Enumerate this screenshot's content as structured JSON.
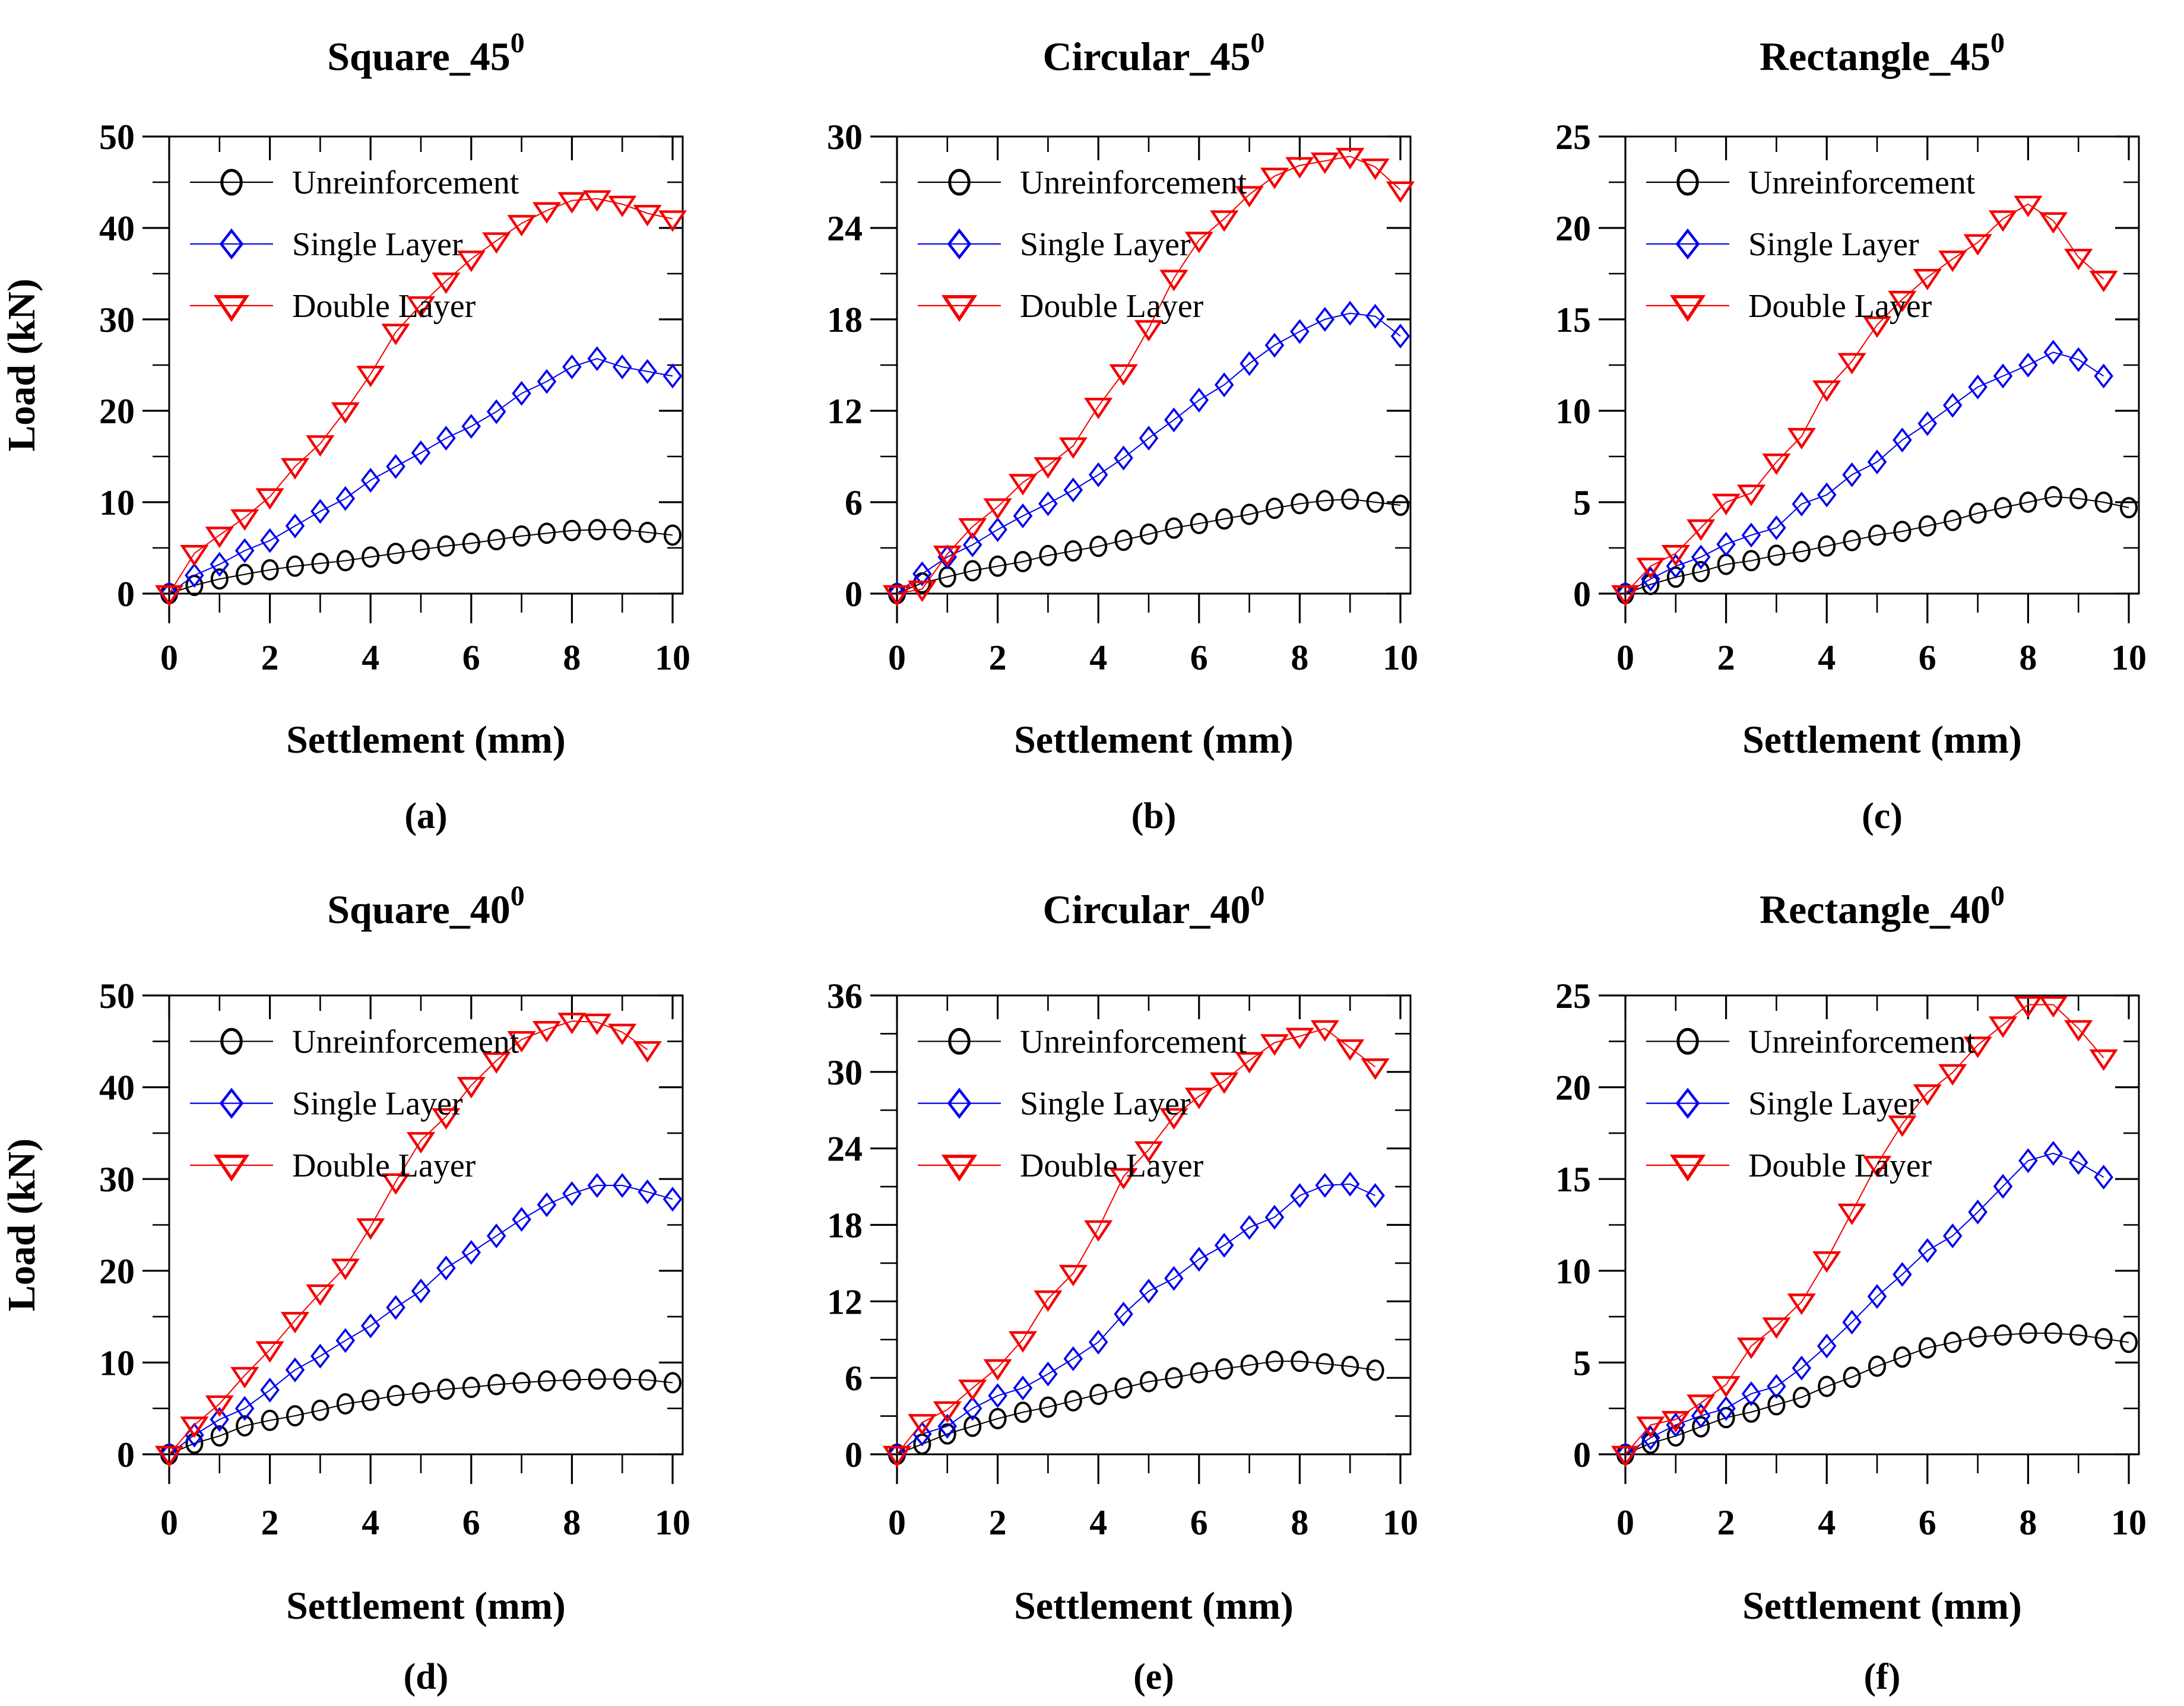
{
  "figure": {
    "xlabel": "Settlement (mm)",
    "ylabel": "Load (kN)",
    "legend": [
      {
        "name": "Unreinforcement",
        "marker": "circle-icon",
        "color": "#000000"
      },
      {
        "name": "Single Layer",
        "marker": "diamond-icon",
        "color": "#0000ee"
      },
      {
        "name": "Double Layer",
        "marker": "triangle-down-icon",
        "color": "#f40000"
      }
    ]
  },
  "chart_data": [
    {
      "id": "a",
      "type": "line",
      "title": "Square_45",
      "title_superscript": "0",
      "caption": "(a)",
      "xlabel": "Settlement (mm)",
      "ylabel": "Load (kN)",
      "xlim": [
        0,
        10.2
      ],
      "ylim": [
        0,
        50
      ],
      "xticks": [
        0,
        2,
        4,
        6,
        8,
        10
      ],
      "yticks": [
        0,
        10,
        20,
        30,
        40,
        50
      ],
      "x_start": 0,
      "x_step": 0.5,
      "series": [
        {
          "name": "Unreinforcement",
          "color": "#000000",
          "marker": "circle",
          "values": [
            0,
            0.9,
            1.6,
            2.1,
            2.6,
            3.0,
            3.3,
            3.6,
            4.0,
            4.4,
            4.8,
            5.2,
            5.5,
            5.9,
            6.3,
            6.6,
            6.9,
            7.0,
            7.0,
            6.7,
            6.4
          ]
        },
        {
          "name": "Single Layer",
          "color": "#0000ee",
          "marker": "diamond",
          "values": [
            0,
            2.0,
            3.2,
            4.7,
            5.8,
            7.4,
            9.0,
            10.4,
            12.4,
            13.9,
            15.4,
            17.0,
            18.3,
            19.9,
            21.9,
            23.2,
            24.8,
            25.7,
            24.8,
            24.3,
            23.8
          ]
        },
        {
          "name": "Double Layer",
          "color": "#f40000",
          "marker": "triangle-down",
          "values": [
            0,
            4.4,
            6.4,
            8.3,
            10.6,
            13.9,
            16.4,
            20.0,
            24.0,
            28.6,
            31.6,
            34.2,
            36.6,
            38.6,
            40.5,
            41.9,
            43.0,
            43.2,
            42.6,
            41.6,
            41.0
          ]
        }
      ]
    },
    {
      "id": "b",
      "type": "line",
      "title": "Circular_45",
      "title_superscript": "0",
      "caption": "(b)",
      "xlabel": "Settlement (mm)",
      "ylabel": null,
      "xlim": [
        0,
        10.2
      ],
      "ylim": [
        0,
        30
      ],
      "xticks": [
        0,
        2,
        4,
        6,
        8,
        10
      ],
      "yticks": [
        0,
        6,
        12,
        18,
        24,
        30
      ],
      "x_start": 0,
      "x_step": 0.5,
      "series": [
        {
          "name": "Unreinforcement",
          "color": "#000000",
          "marker": "circle",
          "values": [
            0,
            0.7,
            1.1,
            1.5,
            1.8,
            2.1,
            2.5,
            2.8,
            3.1,
            3.5,
            3.9,
            4.3,
            4.6,
            4.9,
            5.2,
            5.6,
            5.9,
            6.1,
            6.2,
            6.0,
            5.8
          ]
        },
        {
          "name": "Single Layer",
          "color": "#0000ee",
          "marker": "diamond",
          "values": [
            0,
            1.3,
            2.4,
            3.2,
            4.2,
            5.1,
            5.9,
            6.8,
            7.8,
            8.9,
            10.2,
            11.4,
            12.7,
            13.7,
            15.1,
            16.3,
            17.2,
            18.0,
            18.4,
            18.2,
            16.9
          ]
        },
        {
          "name": "Double Layer",
          "color": "#f40000",
          "marker": "triangle-down",
          "values": [
            0,
            0.3,
            2.6,
            4.4,
            5.7,
            7.3,
            8.4,
            9.7,
            12.3,
            14.5,
            17.4,
            20.7,
            23.2,
            24.6,
            26.2,
            27.4,
            28.1,
            28.4,
            28.7,
            28.0,
            26.5
          ]
        }
      ]
    },
    {
      "id": "c",
      "type": "line",
      "title": "Rectangle_45",
      "title_superscript": "0",
      "caption": "(c)",
      "xlabel": "Settlement (mm)",
      "ylabel": null,
      "xlim": [
        0,
        10.2
      ],
      "ylim": [
        0,
        25
      ],
      "xticks": [
        0,
        2,
        4,
        6,
        8,
        10
      ],
      "yticks": [
        0,
        5,
        10,
        15,
        20,
        25
      ],
      "x_start": 0,
      "x_step": 0.5,
      "series": [
        {
          "name": "Unreinforcement",
          "color": "#000000",
          "marker": "circle",
          "values": [
            0,
            0.5,
            0.9,
            1.2,
            1.6,
            1.8,
            2.1,
            2.3,
            2.6,
            2.9,
            3.2,
            3.4,
            3.7,
            4.0,
            4.4,
            4.7,
            5.0,
            5.3,
            5.2,
            5.0,
            4.7
          ]
        },
        {
          "name": "Single Layer",
          "color": "#0000ee",
          "marker": "diamond",
          "values": [
            0,
            0.8,
            1.5,
            2.0,
            2.7,
            3.2,
            3.6,
            4.9,
            5.4,
            6.5,
            7.2,
            8.4,
            9.3,
            10.3,
            11.3,
            11.9,
            12.5,
            13.2,
            12.8,
            11.9
          ]
        },
        {
          "name": "Double Layer",
          "color": "#f40000",
          "marker": "triangle-down",
          "values": [
            0,
            1.5,
            2.2,
            3.6,
            5.0,
            5.5,
            7.2,
            8.6,
            11.2,
            12.7,
            14.7,
            16.1,
            17.3,
            18.3,
            19.2,
            20.5,
            21.3,
            20.4,
            18.4,
            17.2
          ]
        }
      ]
    },
    {
      "id": "d",
      "type": "line",
      "title": "Square_40",
      "title_superscript": "0",
      "caption": "(d)",
      "xlabel": "Settlement (mm)",
      "ylabel": "Load (kN)",
      "xlim": [
        0,
        10.2
      ],
      "ylim": [
        0,
        50
      ],
      "xticks": [
        0,
        2,
        4,
        6,
        8,
        10
      ],
      "yticks": [
        0,
        10,
        20,
        30,
        40,
        50
      ],
      "x_start": 0,
      "x_step": 0.5,
      "series": [
        {
          "name": "Unreinforcement",
          "color": "#000000",
          "marker": "circle",
          "values": [
            0,
            1.2,
            2.0,
            3.1,
            3.7,
            4.2,
            4.8,
            5.5,
            5.9,
            6.4,
            6.7,
            7.1,
            7.3,
            7.6,
            7.8,
            8.0,
            8.1,
            8.2,
            8.2,
            8.1,
            7.8
          ]
        },
        {
          "name": "Single Layer",
          "color": "#0000ee",
          "marker": "diamond",
          "values": [
            0,
            2.1,
            3.8,
            5.0,
            7.0,
            9.2,
            10.7,
            12.4,
            14.0,
            16.0,
            17.8,
            20.3,
            22.0,
            23.8,
            25.6,
            27.2,
            28.4,
            29.3,
            29.3,
            28.6,
            27.8
          ]
        },
        {
          "name": "Double Layer",
          "color": "#f40000",
          "marker": "triangle-down",
          "values": [
            0,
            3.2,
            5.5,
            8.6,
            11.4,
            14.6,
            17.6,
            20.4,
            24.8,
            29.7,
            34.2,
            36.8,
            40.2,
            42.9,
            45.2,
            46.3,
            47.2,
            47.1,
            46.0,
            44.1
          ]
        }
      ]
    },
    {
      "id": "e",
      "type": "line",
      "title": "Circular_40",
      "title_superscript": "0",
      "caption": "(e)",
      "xlabel": "Settlement (mm)",
      "ylabel": null,
      "xlim": [
        0,
        10.2
      ],
      "ylim": [
        0,
        36
      ],
      "xticks": [
        0,
        2,
        4,
        6,
        8,
        10
      ],
      "yticks": [
        0,
        6,
        12,
        18,
        24,
        30,
        36
      ],
      "x_start": 0,
      "x_step": 0.5,
      "series": [
        {
          "name": "Unreinforcement",
          "color": "#000000",
          "marker": "circle",
          "values": [
            0,
            0.8,
            1.6,
            2.2,
            2.8,
            3.3,
            3.7,
            4.2,
            4.7,
            5.2,
            5.7,
            6.0,
            6.4,
            6.7,
            7.0,
            7.3,
            7.3,
            7.1,
            6.9,
            6.6
          ]
        },
        {
          "name": "Single Layer",
          "color": "#0000ee",
          "marker": "diamond",
          "values": [
            0,
            1.6,
            2.2,
            3.6,
            4.6,
            5.2,
            6.3,
            7.5,
            8.8,
            11.0,
            12.8,
            13.8,
            15.3,
            16.4,
            17.8,
            18.6,
            20.3,
            21.1,
            21.2,
            20.3
          ]
        },
        {
          "name": "Double Layer",
          "color": "#f40000",
          "marker": "triangle-down",
          "values": [
            0,
            2.5,
            3.5,
            5.2,
            6.8,
            9.0,
            12.2,
            14.2,
            17.7,
            21.8,
            23.9,
            26.5,
            28.1,
            29.3,
            30.9,
            32.3,
            32.8,
            33.4,
            31.9,
            30.4
          ]
        }
      ]
    },
    {
      "id": "f",
      "type": "line",
      "title": "Rectangle_40",
      "title_superscript": "0",
      "caption": "(f)",
      "xlabel": "Settlement (mm)",
      "ylabel": null,
      "xlim": [
        0,
        10.2
      ],
      "ylim": [
        0,
        25
      ],
      "xticks": [
        0,
        2,
        4,
        6,
        8,
        10
      ],
      "yticks": [
        0,
        5,
        10,
        15,
        20,
        25
      ],
      "x_start": 0,
      "x_step": 0.5,
      "series": [
        {
          "name": "Unreinforcement",
          "color": "#000000",
          "marker": "circle",
          "values": [
            0,
            0.6,
            1.0,
            1.5,
            2.0,
            2.3,
            2.7,
            3.1,
            3.7,
            4.2,
            4.8,
            5.3,
            5.8,
            6.1,
            6.4,
            6.5,
            6.6,
            6.6,
            6.5,
            6.3,
            6.1
          ]
        },
        {
          "name": "Single Layer",
          "color": "#0000ee",
          "marker": "diamond",
          "values": [
            0,
            0.9,
            1.6,
            2.1,
            2.5,
            3.3,
            3.7,
            4.7,
            5.9,
            7.2,
            8.6,
            9.8,
            11.1,
            11.9,
            13.2,
            14.6,
            16.0,
            16.4,
            15.9,
            15.1
          ]
        },
        {
          "name": "Double Layer",
          "color": "#f40000",
          "marker": "triangle-down",
          "values": [
            0,
            1.6,
            1.9,
            2.8,
            3.8,
            5.9,
            7.0,
            8.3,
            10.6,
            13.2,
            15.8,
            18.0,
            19.7,
            20.8,
            22.3,
            23.4,
            24.5,
            24.5,
            23.2,
            21.6
          ]
        }
      ]
    }
  ]
}
